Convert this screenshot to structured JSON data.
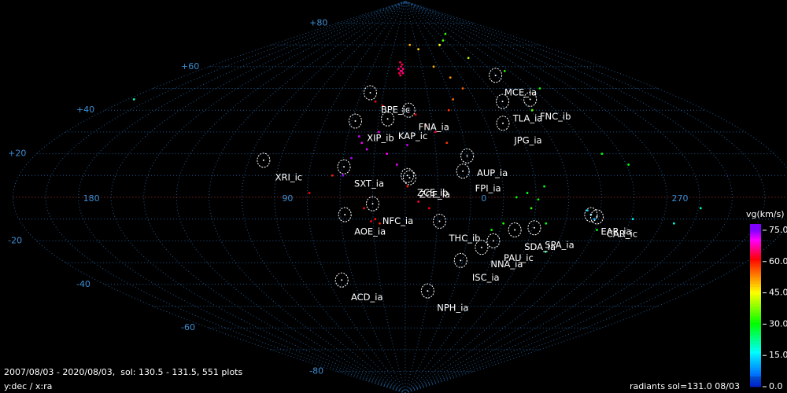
{
  "chart_data": {
    "type": "sky-map",
    "footer": "2007/08/03 - 2020/08/03,  sol: 130.5 - 131.5, 551 plots",
    "axis_note": "y:dec / x:ra",
    "caption": "radiants sol=131.0 08/03",
    "colorbar_title": "vg(km/s)",
    "clim": [
      0,
      78
    ],
    "cticks": [
      {
        "value": 75,
        "label": "75.0"
      },
      {
        "value": 60,
        "label": "60.0"
      },
      {
        "value": 45,
        "label": "45.0"
      },
      {
        "value": 30,
        "label": "30.0"
      },
      {
        "value": 15,
        "label": "15.0"
      },
      {
        "value": 0,
        "label": "0.0"
      }
    ],
    "xticks": [
      180,
      90,
      0,
      270
    ],
    "yticks": [
      {
        "value": 80,
        "label": "+80"
      },
      {
        "value": 60,
        "label": "+60"
      },
      {
        "value": 40,
        "label": "+40"
      },
      {
        "value": 20,
        "label": "+20"
      },
      -20,
      -40,
      -60,
      -80
    ],
    "grid": true,
    "showers": [
      {
        "name": "XRI_ic",
        "ra": 104,
        "dec": 17
      },
      {
        "name": "SXT_ia",
        "ra": 65,
        "dec": 14
      },
      {
        "name": "AOE_ia",
        "ra": 64,
        "dec": -8
      },
      {
        "name": "ACD_ia",
        "ra": 73,
        "dec": -38
      },
      {
        "name": "NPH_ia",
        "ra": 22,
        "dec": -43
      },
      {
        "name": "NFC_ia",
        "ra": 51,
        "dec": -3
      },
      {
        "name": "ZCE_ib",
        "ra": 35,
        "dec": 10
      },
      {
        "name": "ZCE_ia",
        "ra": 34,
        "dec": 9
      },
      {
        "name": "FPI_ia",
        "ra": 9,
        "dec": 12
      },
      {
        "name": "AUP_ia",
        "ra": 6,
        "dec": 19
      },
      {
        "name": "KAP_ic",
        "ra": 46,
        "dec": 36
      },
      {
        "name": "XIP_ib",
        "ra": 64,
        "dec": 35
      },
      {
        "name": "BPE_ic",
        "ra": 60,
        "dec": 48
      },
      {
        "name": "FNA_ia",
        "ra": 34,
        "dec": 40
      },
      {
        "name": "MCE_ia",
        "ra": 322,
        "dec": 56
      },
      {
        "name": "TLA_ia",
        "ra": 334,
        "dec": 44
      },
      {
        "name": "FNC_ib",
        "ra": 315,
        "dec": 45
      },
      {
        "name": "JPG_ia",
        "ra": 342,
        "dec": 34
      },
      {
        "name": "THC_ib",
        "ra": 20,
        "dec": -11
      },
      {
        "name": "NNA_ia",
        "ra": 358,
        "dec": -23
      },
      {
        "name": "ISC_ia",
        "ra": 7,
        "dec": -29
      },
      {
        "name": "PAU_ic",
        "ra": 353,
        "dec": -20
      },
      {
        "name": "SDA_ia",
        "ra": 344,
        "dec": -15
      },
      {
        "name": "SPA_ia",
        "ra": 335,
        "dec": -14
      },
      {
        "name": "EAR_ia",
        "ra": 310,
        "dec": -8
      },
      {
        "name": "CAR_ic",
        "ra": 307,
        "dec": -9
      }
    ],
    "points": [
      [
        40,
        60,
        64
      ],
      [
        39,
        58,
        65
      ],
      [
        41,
        57,
        63
      ],
      [
        38,
        59,
        66
      ],
      [
        40,
        56,
        64
      ],
      [
        42,
        59,
        65
      ],
      [
        39,
        61,
        63
      ],
      [
        41,
        62,
        64
      ],
      [
        38,
        57,
        65
      ],
      [
        40,
        58,
        66
      ],
      [
        55,
        44,
        62
      ],
      [
        50,
        42,
        60
      ],
      [
        30,
        38,
        61
      ],
      [
        25,
        33,
        60
      ],
      [
        20,
        30,
        62
      ],
      [
        15,
        25,
        58
      ],
      [
        45,
        20,
        63
      ],
      [
        70,
        10,
        60
      ],
      [
        80,
        2,
        61
      ],
      [
        55,
        -5,
        62
      ],
      [
        50,
        -10,
        60
      ],
      [
        48,
        -12,
        59
      ],
      [
        52,
        -11,
        62
      ],
      [
        30,
        -2,
        63
      ],
      [
        25,
        -5,
        61
      ],
      [
        35,
        5,
        60
      ],
      [
        10,
        40,
        58
      ],
      [
        5,
        45,
        55
      ],
      [
        355,
        50,
        55
      ],
      [
        0,
        55,
        52
      ],
      [
        10,
        60,
        50
      ],
      [
        60,
        28,
        72
      ],
      [
        58,
        25,
        70
      ],
      [
        55,
        22,
        71
      ],
      [
        62,
        18,
        73
      ],
      [
        50,
        30,
        69
      ],
      [
        45,
        20,
        70
      ],
      [
        40,
        15,
        71
      ],
      [
        35,
        24,
        72
      ],
      [
        65,
        10,
        74
      ],
      [
        20,
        68,
        48
      ],
      [
        350,
        70,
        45
      ],
      [
        330,
        64,
        40
      ],
      [
        30,
        70,
        50
      ],
      [
        320,
        40,
        35
      ],
      [
        340,
        72,
        35
      ],
      [
        325,
        75,
        33
      ],
      [
        310,
        58,
        32
      ],
      [
        300,
        50,
        30
      ],
      [
        340,
        2,
        28
      ],
      [
        335,
        -1,
        30
      ],
      [
        345,
        0,
        31
      ],
      [
        332,
        5,
        29
      ],
      [
        338,
        -5,
        33
      ],
      [
        350,
        -12,
        32
      ],
      [
        355,
        -15,
        30
      ],
      [
        330,
        -12,
        29
      ],
      [
        300,
        20,
        30
      ],
      [
        290,
        15,
        29
      ],
      [
        305,
        -15,
        28
      ],
      [
        310,
        -8,
        12
      ],
      [
        308,
        -10,
        10
      ],
      [
        312,
        -6,
        14
      ],
      [
        290,
        -10,
        15
      ],
      [
        270,
        -12,
        18
      ],
      [
        260,
        -5,
        20
      ],
      [
        212,
        45,
        20
      ],
      [
        325,
        -25,
        22
      ]
    ]
  }
}
